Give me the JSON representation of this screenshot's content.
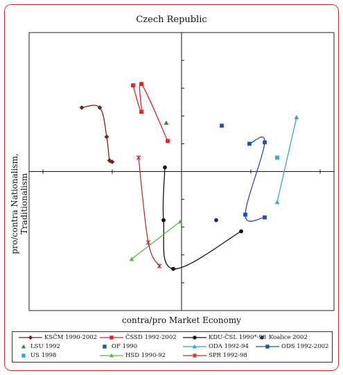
{
  "chart_data": {
    "type": "scatter",
    "title": "Czech Republic",
    "xlabel": "contra/pro Market Economy",
    "ylabel": "pro/contra Nationalism, Traditionalism",
    "xlim": [
      -11,
      11
    ],
    "ylim": [
      -10,
      10
    ],
    "grid": false,
    "legend_position": "bottom",
    "series": [
      {
        "name": "KSČM 1990-2002",
        "mode": "line",
        "color": "#7a1f1f",
        "marker": "diamond",
        "points": [
          [
            -7.2,
            4.6
          ],
          [
            -5.9,
            4.6
          ],
          [
            -5.4,
            2.5
          ],
          [
            -5.2,
            0.8
          ],
          [
            -5.0,
            0.7
          ]
        ]
      },
      {
        "name": "ČSSD 1992-2002",
        "mode": "line",
        "color": "#ee1c24",
        "marker": "square",
        "points": [
          [
            -3.5,
            6.2
          ],
          [
            -2.9,
            4.3
          ],
          [
            -2.9,
            6.3
          ],
          [
            -1.0,
            2.2
          ]
        ]
      },
      {
        "name": "KDU-ČSL 1990*-98",
        "mode": "line",
        "color": "#111111",
        "marker": "circle",
        "points": [
          [
            -1.2,
            0.3
          ],
          [
            -1.3,
            -3.5
          ],
          [
            -0.6,
            -7.0
          ],
          [
            4.3,
            -4.3
          ]
        ]
      },
      {
        "name": "Koalice 2002",
        "mode": "marker",
        "color": "#1a2b5e",
        "marker": "circle",
        "points": [
          [
            2.5,
            -3.5
          ]
        ]
      },
      {
        "name": "LSU 1992",
        "mode": "marker",
        "color": "#2e8b3a",
        "marker": "triangle",
        "points": [
          [
            -1.1,
            3.5
          ]
        ]
      },
      {
        "name": "OF 1990",
        "mode": "marker",
        "color": "#1f4fbf",
        "marker": "square",
        "points": [
          [
            2.9,
            3.3
          ]
        ]
      },
      {
        "name": "ODA 1992-94",
        "mode": "line",
        "color": "#29a8e0",
        "marker": "triangle",
        "points": [
          [
            6.9,
            -2.2
          ],
          [
            8.3,
            3.9
          ]
        ]
      },
      {
        "name": "ODS 1992-2002",
        "mode": "line",
        "color": "#1f4fbf",
        "marker": "square",
        "points": [
          [
            4.9,
            2.0
          ],
          [
            6.0,
            2.1
          ],
          [
            4.6,
            -3.1
          ],
          [
            6.0,
            -3.3
          ]
        ]
      },
      {
        "name": "US 1998",
        "mode": "marker",
        "color": "#29a8e0",
        "marker": "square",
        "points": [
          [
            6.9,
            1.0
          ]
        ]
      },
      {
        "name": "HSD 1990-92",
        "mode": "line",
        "color": "#58b947",
        "marker": "triangle",
        "points": [
          [
            -3.6,
            -6.3
          ],
          [
            -0.1,
            -3.6
          ]
        ]
      },
      {
        "name": "SPR 1992-98",
        "mode": "line",
        "color": "#b5312f",
        "marker": "star",
        "points": [
          [
            -3.1,
            1.0
          ],
          [
            -2.4,
            -5.1
          ],
          [
            -1.6,
            -6.8
          ]
        ]
      }
    ]
  }
}
